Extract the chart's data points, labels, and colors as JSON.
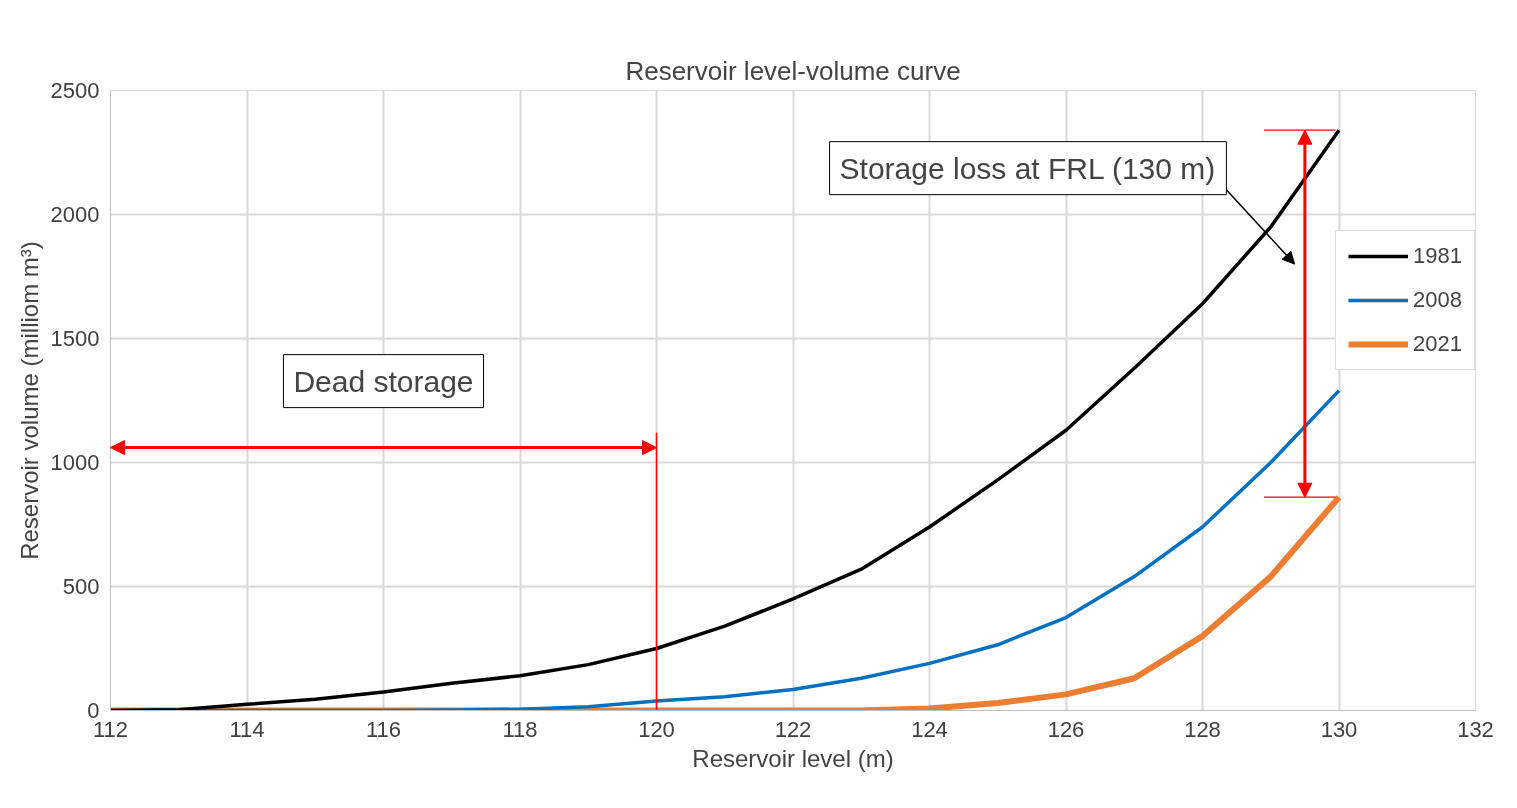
{
  "chart_data": {
    "type": "line",
    "title": "Reservoir level-volume curve",
    "xlabel": "Reservoir level (m)",
    "ylabel": "Reservoir volume (milliom m³)",
    "x": [
      112,
      113,
      114,
      115,
      116,
      117,
      118,
      119,
      120,
      121,
      122,
      123,
      124,
      125,
      126,
      127,
      128,
      129,
      130
    ],
    "series": [
      {
        "name": "1981",
        "color": "#000000",
        "values": [
          0,
          3,
          25,
          45,
          75,
          110,
          140,
          185,
          250,
          340,
          450,
          570,
          740,
          930,
          1130,
          1380,
          1640,
          1950,
          2340
        ]
      },
      {
        "name": "2008",
        "color": "#0070c0",
        "values": [
          0,
          0,
          0,
          0,
          0,
          2,
          5,
          15,
          38,
          55,
          85,
          130,
          190,
          265,
          375,
          540,
          740,
          1000,
          1290
        ]
      },
      {
        "name": "2021",
        "color": "#ed7d31",
        "values": [
          0,
          0,
          0,
          0,
          0,
          0,
          0,
          0,
          0,
          0,
          0,
          0,
          8,
          30,
          65,
          130,
          300,
          540,
          860
        ]
      }
    ],
    "xlim": [
      112,
      132
    ],
    "xticks": [
      112,
      114,
      116,
      118,
      120,
      122,
      124,
      126,
      128,
      130,
      132
    ],
    "ylim": [
      0,
      2500
    ],
    "yticks": [
      0,
      500,
      1000,
      1500,
      2000,
      2500
    ],
    "grid": true,
    "legend": "top right",
    "line_style": "solid",
    "marker": "none",
    "ref_lines": [
      {
        "axis": "x",
        "value": 120,
        "label": null,
        "color": "#ff0000"
      }
    ],
    "annotations": [
      "Dead storage",
      "Storage loss at FRL (130 m)"
    ]
  }
}
